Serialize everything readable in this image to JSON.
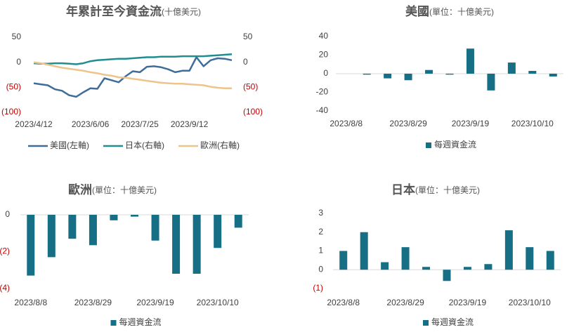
{
  "chart_data": [
    {
      "type": "line",
      "title": "年累計至今資金流",
      "subtitle": "(十億美元)",
      "categories": [
        "2023/4/12",
        null,
        null,
        null,
        null,
        null,
        null,
        null,
        "2023/6/06",
        null,
        null,
        null,
        null,
        null,
        null,
        "2023/7/25",
        null,
        null,
        null,
        null,
        null,
        null,
        "2023/9/12",
        null,
        null,
        null,
        null,
        null,
        null
      ],
      "ylim": [
        -100,
        50
      ],
      "yticks": [
        50,
        0,
        {
          "value": -50,
          "label": "(50)"
        },
        {
          "value": -100,
          "label": "(100)"
        }
      ],
      "y2lim": [
        -100,
        50
      ],
      "y2ticks": [
        50,
        0,
        {
          "value": -50,
          "label": "(50)"
        },
        {
          "value": -100,
          "label": "(100)"
        }
      ],
      "series": [
        {
          "name": "美國(左軸)",
          "color": "#3f6d99",
          "axis": "y",
          "values": [
            -42,
            -44,
            -46,
            -54,
            -57,
            -66,
            -69,
            -60,
            -52,
            -53,
            -32,
            -36,
            -40,
            -28,
            -18,
            -20,
            -9,
            -8,
            -10,
            -14,
            -20,
            -17,
            -17,
            10,
            -8,
            4,
            8,
            7,
            4
          ]
        },
        {
          "name": "日本(右軸)",
          "color": "#1e8e91",
          "axis": "y2",
          "values": [
            -2,
            -3,
            -3,
            -2,
            -2,
            -3,
            -4,
            -2,
            2,
            4,
            5,
            6,
            7,
            7,
            8,
            9,
            10,
            10,
            11,
            11,
            11,
            12,
            12,
            12,
            12,
            13,
            14,
            15,
            16
          ]
        },
        {
          "name": "歐洲(右軸)",
          "color": "#ecc48c",
          "axis": "y2",
          "values": [
            0,
            -2,
            -5,
            -8,
            -11,
            -13,
            -15,
            -17,
            -20,
            -22,
            -25,
            -27,
            -30,
            -31,
            -33,
            -35,
            -37,
            -39,
            -41,
            -42,
            -43,
            -43,
            -44,
            -45,
            -46,
            -49,
            -51,
            -52,
            -52
          ]
        }
      ]
    },
    {
      "type": "bar",
      "title": "美國",
      "subtitle": "(單位：十億美元)",
      "categories": [
        "2023/8/8",
        null,
        null,
        "2023/8/29",
        null,
        null,
        "2023/9/19",
        null,
        null,
        "2023/10/10",
        null
      ],
      "ylim": [
        -40,
        40
      ],
      "yticks": [
        40,
        20,
        0,
        -20,
        -40
      ],
      "series": [
        {
          "name": "每週資金流",
          "color": "#176f86",
          "values": [
            0,
            -1,
            -5,
            -7,
            4,
            -1,
            27,
            -18,
            12,
            3,
            -3
          ]
        }
      ]
    },
    {
      "type": "bar",
      "title": "歐洲",
      "subtitle": "(單位：十億美元)",
      "categories": [
        "2023/8/8",
        null,
        null,
        "2023/8/29",
        null,
        null,
        "2023/9/19",
        null,
        null,
        "2023/10/10",
        null
      ],
      "ylim": [
        -4,
        0
      ],
      "yticks": [
        0,
        {
          "value": -2,
          "label": "(2)"
        },
        {
          "value": -4,
          "label": "(4)"
        }
      ],
      "series": [
        {
          "name": "每週資金流",
          "color": "#176f86",
          "values": [
            -3.3,
            -2.3,
            -1.3,
            -1.65,
            -0.3,
            -0.1,
            -1.4,
            -3.2,
            -3.2,
            -1.8,
            -0.7
          ]
        }
      ]
    },
    {
      "type": "bar",
      "title": "日本",
      "subtitle": "(單位：十億美元)",
      "categories": [
        "2023/8/8",
        null,
        null,
        "2023/8/29",
        null,
        null,
        "2023/9/19",
        null,
        null,
        "2023/10/10",
        null
      ],
      "ylim": [
        -1,
        3
      ],
      "yticks": [
        3,
        2,
        1,
        0,
        {
          "value": -1,
          "label": "(1)"
        }
      ],
      "series": [
        {
          "name": "每週資金流",
          "color": "#176f86",
          "values": [
            1,
            2,
            0.4,
            1.2,
            0.15,
            -0.6,
            0.15,
            0.3,
            2.1,
            1.2,
            1
          ]
        }
      ]
    }
  ]
}
